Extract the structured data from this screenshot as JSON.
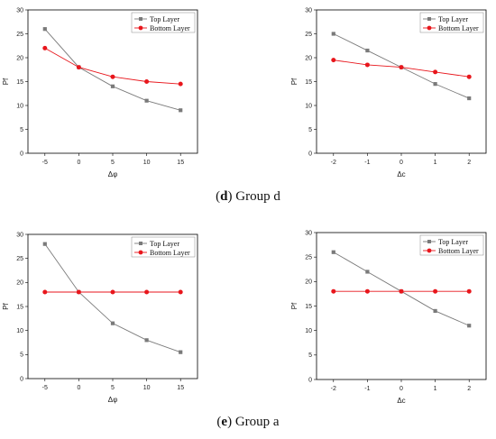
{
  "captions": [
    {
      "letter": "d",
      "text": "Group d"
    },
    {
      "letter": "e",
      "text": "Group a"
    }
  ],
  "colors": {
    "top": "#7a7a7a",
    "bottom": "#e8161c"
  },
  "chart_data": [
    {
      "type": "line",
      "xlabel": "Δφ",
      "ylabel": "Pf",
      "x": [
        -5,
        0,
        5,
        10,
        15
      ],
      "xticks": [
        -5,
        0,
        5,
        10,
        15
      ],
      "xlim": [
        -7.5,
        17.5
      ],
      "ylim": [
        0,
        30
      ],
      "yticks": [
        0,
        5,
        10,
        15,
        20,
        25,
        30
      ],
      "legend_position": "top-right",
      "series": [
        {
          "name": "Top Layer",
          "values": [
            26,
            18,
            14,
            11,
            9
          ]
        },
        {
          "name": "Bottom Layer",
          "values": [
            22,
            18,
            16,
            15,
            14.5
          ]
        }
      ]
    },
    {
      "type": "line",
      "xlabel": "Δc",
      "ylabel": "Pf",
      "x": [
        -2,
        -1,
        0,
        1,
        2
      ],
      "xticks": [
        -2,
        -1,
        0,
        1,
        2
      ],
      "xlim": [
        -2.5,
        2.5
      ],
      "ylim": [
        0,
        30
      ],
      "yticks": [
        0,
        5,
        10,
        15,
        20,
        25,
        30
      ],
      "legend_position": "top-right",
      "series": [
        {
          "name": "Top Layer",
          "values": [
            25,
            21.5,
            18,
            14.5,
            11.5
          ]
        },
        {
          "name": "Bottom Layer",
          "values": [
            19.5,
            18.5,
            18,
            17,
            16
          ]
        }
      ]
    },
    {
      "type": "line",
      "xlabel": "Δφ",
      "ylabel": "Pf",
      "x": [
        -5,
        0,
        5,
        10,
        15
      ],
      "xticks": [
        -5,
        0,
        5,
        10,
        15
      ],
      "xlim": [
        -7.5,
        17.5
      ],
      "ylim": [
        0,
        30
      ],
      "yticks": [
        0,
        5,
        10,
        15,
        20,
        25,
        30
      ],
      "legend_position": "top-right",
      "series": [
        {
          "name": "Top Layer",
          "values": [
            28,
            18,
            11.5,
            8,
            5.5
          ]
        },
        {
          "name": "Bottom Layer",
          "values": [
            18,
            18,
            18,
            18,
            18
          ]
        }
      ]
    },
    {
      "type": "line",
      "xlabel": "Δc",
      "ylabel": "Pf",
      "x": [
        -2,
        -1,
        0,
        1,
        2
      ],
      "xticks": [
        -2,
        -1,
        0,
        1,
        2
      ],
      "xlim": [
        -2.5,
        2.5
      ],
      "ylim": [
        0,
        30
      ],
      "yticks": [
        0,
        5,
        10,
        15,
        20,
        25,
        30
      ],
      "legend_position": "top-right",
      "series": [
        {
          "name": "Top Layer",
          "values": [
            26,
            22,
            18,
            14,
            11
          ]
        },
        {
          "name": "Bottom Layer",
          "values": [
            18,
            18,
            18,
            18,
            18
          ]
        }
      ]
    }
  ]
}
